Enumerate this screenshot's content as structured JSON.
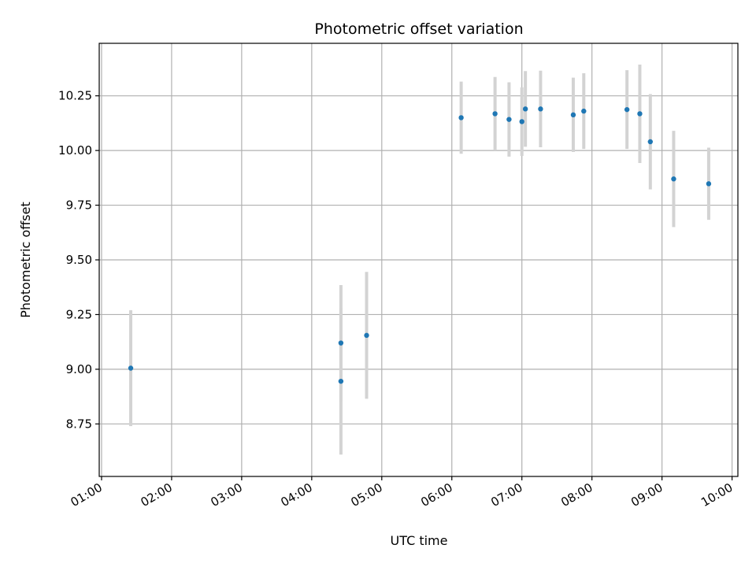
{
  "chart_data": {
    "type": "scatter",
    "title": "Photometric offset variation",
    "xlabel": "UTC time",
    "ylabel": "Photometric offset",
    "x_ticks": [
      "01:00",
      "02:00",
      "03:00",
      "04:00",
      "05:00",
      "06:00",
      "07:00",
      "08:00",
      "09:00",
      "10:00"
    ],
    "y_ticks": [
      "8.75",
      "9.00",
      "9.25",
      "9.50",
      "9.75",
      "10.00",
      "10.25"
    ],
    "xlim": [
      "00:58",
      "10:05"
    ],
    "ylim": [
      8.51,
      10.49
    ],
    "grid": true,
    "colors": {
      "points": "#1f77b4",
      "error_bars": "#d3d3d3",
      "grid": "#b0b0b0"
    },
    "points": [
      {
        "x": "01:25",
        "y": 9.005,
        "err": 0.265
      },
      {
        "x": "04:25",
        "y": 8.945,
        "err": 0.335
      },
      {
        "x": "04:25",
        "y": 9.12,
        "err": 0.265
      },
      {
        "x": "04:47",
        "y": 9.155,
        "err": 0.29
      },
      {
        "x": "06:08",
        "y": 10.15,
        "err": 0.165
      },
      {
        "x": "06:37",
        "y": 10.168,
        "err": 0.168
      },
      {
        "x": "06:49",
        "y": 10.142,
        "err": 0.17
      },
      {
        "x": "07:00",
        "y": 10.132,
        "err": 0.157
      },
      {
        "x": "07:03",
        "y": 10.19,
        "err": 0.173
      },
      {
        "x": "07:16",
        "y": 10.19,
        "err": 0.175
      },
      {
        "x": "07:44",
        "y": 10.163,
        "err": 0.17
      },
      {
        "x": "07:53",
        "y": 10.18,
        "err": 0.173
      },
      {
        "x": "08:30",
        "y": 10.187,
        "err": 0.18
      },
      {
        "x": "08:41",
        "y": 10.168,
        "err": 0.225
      },
      {
        "x": "08:50",
        "y": 10.04,
        "err": 0.218
      },
      {
        "x": "09:10",
        "y": 9.87,
        "err": 0.22
      },
      {
        "x": "09:40",
        "y": 9.848,
        "err": 0.165
      }
    ]
  }
}
